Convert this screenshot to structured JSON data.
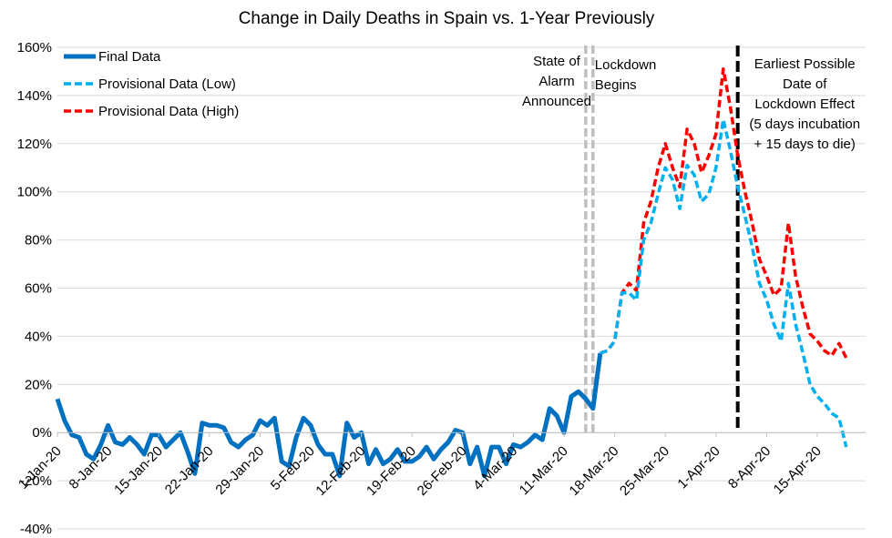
{
  "chart_data": {
    "type": "line",
    "title": "Change in Daily Deaths in Spain vs. 1-Year Previously",
    "xlabel": "",
    "ylabel": "",
    "ylim": [
      -0.4,
      1.6
    ],
    "y_ticks": [
      -0.4,
      -0.2,
      0.0,
      0.2,
      0.4,
      0.6,
      0.8,
      1.0,
      1.2,
      1.4,
      1.6
    ],
    "y_tick_labels": [
      "-40%",
      "-20%",
      "0%",
      "20%",
      "40%",
      "60%",
      "80%",
      "100%",
      "120%",
      "140%",
      "160%"
    ],
    "x_start_date": "2020-01-01",
    "x_range": [
      "2020-01-01",
      "2020-04-16"
    ],
    "x_tick_dates": [
      "2020-01-01",
      "2020-01-08",
      "2020-01-15",
      "2020-01-22",
      "2020-01-29",
      "2020-02-05",
      "2020-02-12",
      "2020-02-19",
      "2020-02-26",
      "2020-03-04",
      "2020-03-11",
      "2020-03-18",
      "2020-03-25",
      "2020-04-01",
      "2020-04-08",
      "2020-04-15"
    ],
    "x_tick_labels": [
      "1-Jan-20",
      "8-Jan-20",
      "15-Jan-20",
      "22-Jan-20",
      "29-Jan-20",
      "5-Feb-20",
      "12-Feb-20",
      "19-Feb-20",
      "26-Feb-20",
      "4-Mar-20",
      "11-Mar-20",
      "18-Mar-20",
      "25-Mar-20",
      "1-Apr-20",
      "8-Apr-20",
      "15-Apr-20"
    ],
    "grid": "horizontal",
    "legend_position": "top-left",
    "series": [
      {
        "name": "Final Data",
        "color": "#0070C0",
        "style": "solid",
        "x_start_date": "2020-01-01",
        "values": [
          0.14,
          0.05,
          -0.01,
          -0.02,
          -0.09,
          -0.11,
          -0.05,
          0.03,
          -0.04,
          -0.05,
          -0.02,
          -0.05,
          -0.09,
          -0.01,
          -0.01,
          -0.06,
          -0.03,
          0.0,
          -0.08,
          -0.17,
          0.04,
          0.03,
          0.03,
          0.02,
          -0.04,
          -0.06,
          -0.03,
          -0.01,
          0.05,
          0.03,
          0.06,
          -0.12,
          -0.14,
          -0.02,
          0.06,
          0.03,
          -0.05,
          -0.09,
          -0.09,
          -0.18,
          0.04,
          -0.02,
          0.0,
          -0.13,
          -0.07,
          -0.13,
          -0.11,
          -0.07,
          -0.12,
          -0.12,
          -0.1,
          -0.06,
          -0.11,
          -0.07,
          -0.04,
          0.01,
          0.0,
          -0.13,
          -0.06,
          -0.18,
          -0.06,
          -0.06,
          -0.13,
          -0.05,
          -0.06,
          -0.04,
          -0.01,
          -0.03,
          0.1,
          0.07,
          0.0,
          0.15,
          0.17,
          0.14,
          0.1,
          0.33
        ]
      },
      {
        "name": "Provisional Data (Low)",
        "color": "#00B0F0",
        "style": "dashed",
        "x_start_date": "2020-03-16",
        "values": [
          0.33,
          0.34,
          0.38,
          0.58,
          0.58,
          0.55,
          0.8,
          0.87,
          0.99,
          1.1,
          1.05,
          0.93,
          1.11,
          1.07,
          0.96,
          0.99,
          1.1,
          1.3,
          1.17,
          1.02,
          0.9,
          0.77,
          0.62,
          0.55,
          0.45,
          0.38,
          0.62,
          0.45,
          0.33,
          0.2,
          0.15,
          0.12,
          0.08,
          0.06,
          -0.06
        ]
      },
      {
        "name": "Provisional Data (High)",
        "color": "#FF0000",
        "style": "dashed",
        "x_start_date": "2020-03-16",
        "values": [
          0.33,
          0.34,
          0.38,
          0.58,
          0.62,
          0.59,
          0.87,
          0.96,
          1.1,
          1.2,
          1.1,
          1.02,
          1.26,
          1.2,
          1.08,
          1.15,
          1.24,
          1.51,
          1.35,
          1.15,
          1.0,
          0.87,
          0.72,
          0.65,
          0.57,
          0.6,
          0.87,
          0.65,
          0.52,
          0.41,
          0.38,
          0.34,
          0.32,
          0.37,
          0.31
        ]
      }
    ],
    "vertical_lines": [
      {
        "date": "2020-03-14",
        "color": "#BFBFBF",
        "style": "dashed"
      },
      {
        "date": "2020-03-15",
        "color": "#BFBFBF",
        "style": "dashed"
      },
      {
        "date": "2020-04-04",
        "color": "#000000",
        "style": "dashed"
      }
    ],
    "annotations": [
      {
        "date": "2020-03-12",
        "anchor": "middle",
        "lines": [
          "State of",
          "Alarm",
          "Announced"
        ]
      },
      {
        "date": "2020-03-15",
        "anchor": "start",
        "lines": [
          "Lockdown",
          "Begins"
        ]
      },
      {
        "date": "2020-04-12",
        "anchor": "middle",
        "lines": [
          "Earliest Possible",
          "Date of",
          "Lockdown Effect",
          "(5 days incubation",
          "+ 15 days to die)"
        ]
      }
    ]
  }
}
